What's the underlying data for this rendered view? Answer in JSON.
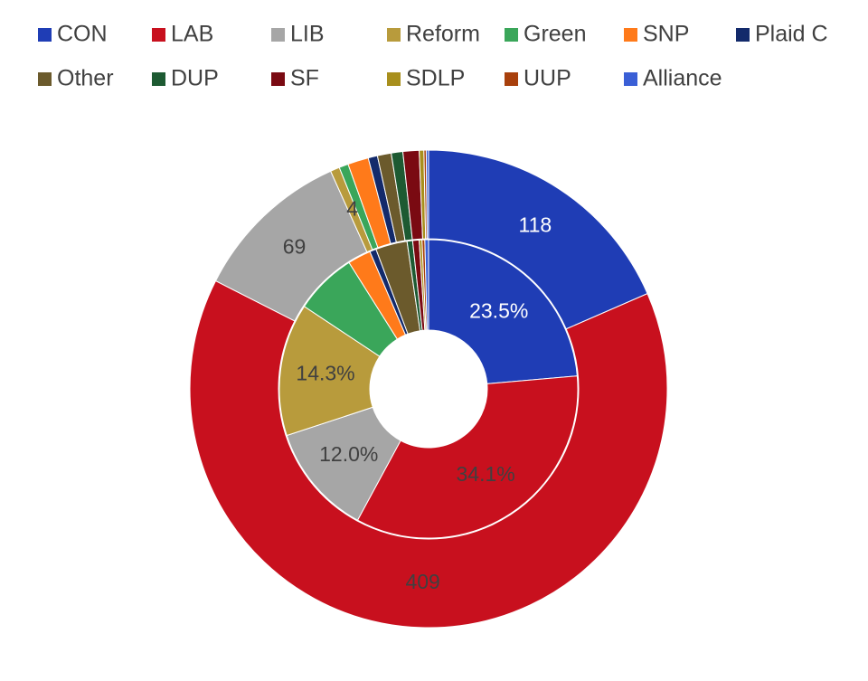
{
  "chart_data": {
    "type": "doughnut",
    "categories": [
      "CON",
      "LAB",
      "LIB",
      "Reform",
      "Green",
      "SNP",
      "Plaid C",
      "Other",
      "DUP",
      "SF",
      "SDLP",
      "UUP",
      "Alliance"
    ],
    "colors": [
      "#1f3db5",
      "#c8101e",
      "#a6a6a6",
      "#b89b3c",
      "#3aa65a",
      "#ff7a1a",
      "#132a6b",
      "#6b5a2c",
      "#1d5a32",
      "#7a0a12",
      "#a88f1c",
      "#a8400c",
      "#3a5fd6"
    ],
    "series": [
      {
        "values": [
          118,
          409,
          69,
          4,
          4,
          9,
          4,
          6,
          5,
          7,
          2,
          1,
          1
        ],
        "value_labels": [
          "118",
          "409",
          "69",
          "4",
          null,
          null,
          null,
          null,
          null,
          null,
          null,
          null,
          null
        ]
      },
      {
        "values": [
          23.5,
          34.1,
          12.0,
          14.3,
          6.7,
          2.5,
          0.7,
          3.4,
          0.6,
          0.7,
          0.3,
          0.3,
          0.4
        ],
        "value_labels": [
          "23.5%",
          "34.1%",
          "12.0%",
          "14.3%",
          null,
          null,
          null,
          null,
          null,
          null,
          null,
          null,
          null
        ]
      }
    ]
  }
}
